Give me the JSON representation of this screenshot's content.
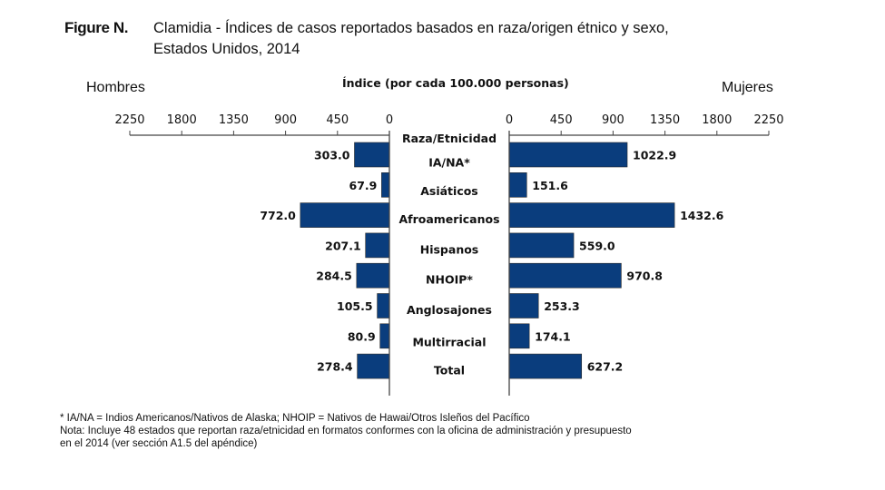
{
  "figure_label": "Figure N.",
  "title_lines": [
    "Clamidia - Índices de casos reportados basados en raza/origen étnico y sexo,",
    "Estados Unidos, 2014"
  ],
  "footnotes": [
    "* IA/NA = Indios Americanos/Nativos de Alaska; NHOIP = Nativos de Hawai/Otros Isleños del Pacífico",
    "Nota: Incluye 48 estados que reportan raza/etnicidad en formatos conformes con la oficina de administración y presupuesto",
    "en el 2014 (ver sección A1.5 del apéndice)"
  ],
  "colors": {
    "bar": "#0a3d7d",
    "axis": "#444444",
    "text": "#111111"
  },
  "chart_data": {
    "type": "bar",
    "orientation": "horizontal-butterfly",
    "title": "Clamidia - Índices de casos reportados basados en raza/origen étnico y sexo, Estados Unidos, 2014",
    "xlabel": "Índice (por cada 100.000 personas)",
    "category_header": "Raza/Etnicidad",
    "left_label": "Hombres",
    "right_label": "Mujeres",
    "xlim": [
      0,
      2250
    ],
    "ticks": [
      0,
      450,
      900,
      1350,
      1800,
      2250
    ],
    "tick_labels": [
      "0",
      "450",
      "900",
      "1350",
      "1800",
      "2250"
    ],
    "grid": false,
    "categories": [
      "IA/NA*",
      "Asiáticos",
      "Afroamericanos",
      "Hispanos",
      "NHOIP*",
      "Anglosajones",
      "Multirracial",
      "Total"
    ],
    "series": [
      {
        "name": "Hombres",
        "side": "left",
        "values": [
          303.0,
          67.9,
          772.0,
          207.1,
          284.5,
          105.5,
          80.9,
          278.4
        ],
        "labels": [
          "303.0",
          "67.9",
          "772.0",
          "207.1",
          "284.5",
          "105.5",
          "80.9",
          "278.4"
        ]
      },
      {
        "name": "Mujeres",
        "side": "right",
        "values": [
          1022.9,
          151.6,
          1432.6,
          559.0,
          970.8,
          253.3,
          174.1,
          627.2
        ],
        "labels": [
          "1022.9",
          "151.6",
          "1432.6",
          "559.0",
          "970.8",
          "253.3",
          "174.1",
          "627.2"
        ]
      }
    ]
  }
}
